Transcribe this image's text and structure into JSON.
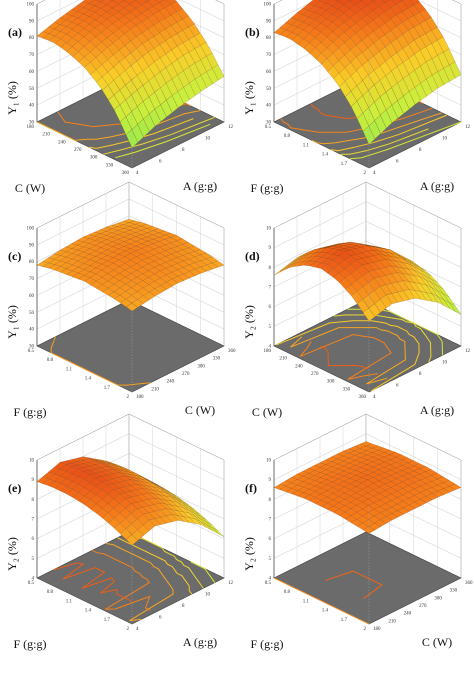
{
  "chart_data": [
    {
      "id": "a",
      "type": "surface3d",
      "panel_label": "(a)",
      "zlabel": "Y₁ (%)",
      "xlabel": "C (W)",
      "ylabel": "A (g:g)",
      "x_ticks": [
        "180",
        "210",
        "240",
        "270",
        "300",
        "330",
        "360"
      ],
      "y_ticks": [
        "4",
        "6",
        "8",
        "10",
        "12"
      ],
      "z_ticks": [
        "30",
        "40",
        "50",
        "60",
        "70",
        "80",
        "90",
        "100"
      ],
      "zlim": [
        30,
        100
      ],
      "grid_z": [
        [
          42,
          58,
          69,
          76,
          80,
          82,
          81
        ],
        [
          48,
          63,
          74,
          81,
          85,
          86,
          85
        ],
        [
          52,
          67,
          78,
          85,
          88,
          89,
          88
        ],
        [
          55,
          70,
          80,
          87,
          90,
          91,
          90
        ],
        [
          57,
          71,
          81,
          88,
          91,
          92,
          91
        ]
      ],
      "contour_levels": 6
    },
    {
      "id": "b",
      "type": "surface3d",
      "panel_label": "(b)",
      "zlabel": "Y₁ (%)",
      "xlabel": "F (g:g)",
      "ylabel": "A (g:g)",
      "x_ticks": [
        "0.5",
        "0.8",
        "1.1",
        "1.4",
        "1.7",
        "2"
      ],
      "y_ticks": [
        "4",
        "6",
        "8",
        "10",
        "12"
      ],
      "z_ticks": [
        "30",
        "40",
        "50",
        "60",
        "70",
        "80",
        "90",
        "100"
      ],
      "zlim": [
        30,
        100
      ],
      "grid_z": [
        [
          44,
          60,
          71,
          78,
          82,
          84,
          83
        ],
        [
          50,
          66,
          77,
          84,
          88,
          89,
          88
        ],
        [
          54,
          70,
          81,
          88,
          92,
          93,
          92
        ],
        [
          57,
          73,
          84,
          91,
          94,
          95,
          94
        ],
        [
          58,
          74,
          85,
          92,
          95,
          96,
          95
        ]
      ],
      "contour_levels": 6
    },
    {
      "id": "c",
      "type": "surface3d",
      "panel_label": "(c)",
      "zlabel": "Y₁ (%)",
      "xlabel": "F (g:g)",
      "ylabel": "C (W)",
      "x_ticks": [
        "0.5",
        "0.8",
        "1.1",
        "1.4",
        "1.7",
        "2"
      ],
      "y_ticks": [
        "180",
        "210",
        "240",
        "270",
        "300",
        "330",
        "360"
      ],
      "z_ticks": [
        "30",
        "40",
        "50",
        "60",
        "70",
        "80",
        "90",
        "100"
      ],
      "zlim": [
        30,
        100
      ],
      "grid_z": [
        [
          78,
          80,
          81,
          82,
          81,
          80,
          78
        ],
        [
          80,
          82,
          83,
          84,
          83,
          82,
          80
        ],
        [
          81,
          83,
          84,
          85,
          84,
          83,
          81
        ],
        [
          80,
          82,
          83,
          84,
          83,
          82,
          80
        ],
        [
          78,
          80,
          81,
          82,
          81,
          80,
          78
        ]
      ],
      "contour_levels": 4
    },
    {
      "id": "d",
      "type": "surface3d",
      "panel_label": "(d)",
      "zlabel": "Y₂ (%)",
      "xlabel": "C (W)",
      "ylabel": "A (g:g)",
      "x_ticks": [
        "180",
        "210",
        "240",
        "270",
        "300",
        "330",
        "360"
      ],
      "y_ticks": [
        "4",
        "6",
        "8",
        "10",
        "12"
      ],
      "z_ticks": [
        "4",
        "5",
        "6",
        "7",
        "8",
        "9",
        "10"
      ],
      "zlim": [
        4,
        10
      ],
      "grid_z": [
        [
          7.6,
          8.4,
          8.9,
          9.1,
          8.9,
          8.4,
          7.6
        ],
        [
          7.9,
          8.7,
          9.2,
          9.4,
          9.2,
          8.7,
          7.9
        ],
        [
          7.6,
          8.4,
          8.9,
          9.1,
          8.9,
          8.4,
          7.6
        ],
        [
          6.8,
          7.6,
          8.1,
          8.3,
          8.1,
          7.6,
          6.8
        ],
        [
          5.6,
          6.4,
          6.9,
          7.1,
          6.9,
          6.4,
          5.6
        ]
      ],
      "contour_levels": 6
    },
    {
      "id": "e",
      "type": "surface3d",
      "panel_label": "(e)",
      "zlabel": "Y₂ (%)",
      "xlabel": "F (g:g)",
      "ylabel": "A (g:g)",
      "x_ticks": [
        "0.5",
        "0.8",
        "1.1",
        "1.4",
        "1.7",
        "2"
      ],
      "y_ticks": [
        "4",
        "6",
        "8",
        "10",
        "12"
      ],
      "z_ticks": [
        "4",
        "5",
        "6",
        "7",
        "8",
        "9",
        "10"
      ],
      "zlim": [
        4,
        10
      ],
      "grid_z": [
        [
          8.0,
          8.4,
          8.7,
          8.9,
          9.0,
          9.0,
          8.9
        ],
        [
          8.4,
          8.8,
          9.1,
          9.3,
          9.4,
          9.4,
          9.3
        ],
        [
          8.1,
          8.5,
          8.8,
          9.0,
          9.1,
          9.1,
          9.0
        ],
        [
          7.3,
          7.7,
          8.0,
          8.2,
          8.3,
          8.3,
          8.2
        ],
        [
          6.1,
          6.5,
          6.8,
          7.0,
          7.1,
          7.1,
          7.0
        ]
      ],
      "contour_levels": 6
    },
    {
      "id": "f",
      "type": "surface3d",
      "panel_label": "(f)",
      "zlabel": "Y₂ (%)",
      "xlabel": "F (g:g)",
      "ylabel": "C (W)",
      "x_ticks": [
        "0.5",
        "0.8",
        "1.1",
        "1.4",
        "1.7",
        "2"
      ],
      "y_ticks": [
        "180",
        "210",
        "240",
        "270",
        "300",
        "330",
        "360"
      ],
      "z_ticks": [
        "4",
        "5",
        "6",
        "7",
        "8",
        "9",
        "10"
      ],
      "zlim": [
        4,
        10
      ],
      "grid_z": [
        [
          8.6,
          8.7,
          8.8,
          8.8,
          8.8,
          8.7,
          8.6
        ],
        [
          8.7,
          8.8,
          8.9,
          8.9,
          8.9,
          8.8,
          8.7
        ],
        [
          8.7,
          8.8,
          8.9,
          9.0,
          8.9,
          8.8,
          8.7
        ],
        [
          8.7,
          8.8,
          8.9,
          8.9,
          8.9,
          8.8,
          8.7
        ],
        [
          8.6,
          8.7,
          8.8,
          8.8,
          8.8,
          8.7,
          8.6
        ]
      ],
      "contour_levels": 5
    }
  ]
}
